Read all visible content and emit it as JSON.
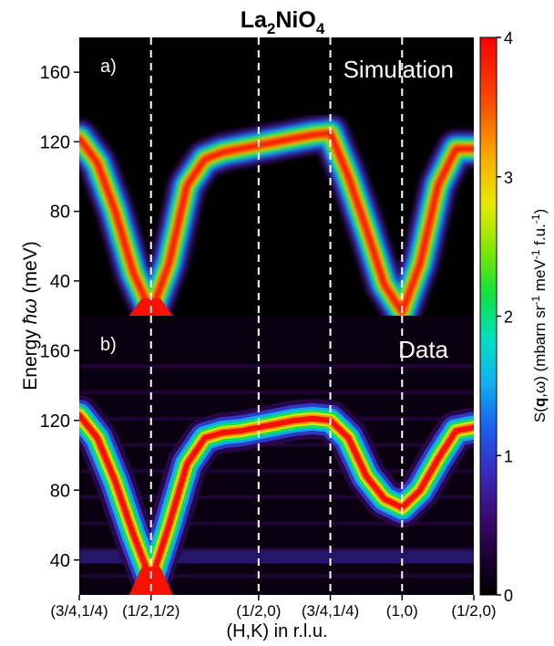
{
  "chart_data": [
    {
      "type": "heatmap",
      "title": "La2NiO4",
      "panel_label": "a)",
      "panel_text": "Simulation",
      "ylabel": "Energy ħω (meV)",
      "ylim": [
        20,
        180
      ],
      "yticks": [
        40,
        80,
        120,
        160
      ],
      "x_tick_labels": [
        "(3/4,1/4)",
        "(1/2,1/2)",
        "(1/2,0)",
        "(3/4,1/4)",
        "(1,0)",
        "(1/2,0)"
      ],
      "x_tick_positions": [
        0,
        1,
        2.5,
        3.5,
        4.5,
        5.5
      ],
      "xlabel": "(H,K) in r.l.u.",
      "dispersion": {
        "x": [
          0,
          0.25,
          0.5,
          0.75,
          1.0,
          1.25,
          1.5,
          1.75,
          2.0,
          2.25,
          2.5,
          2.75,
          3.0,
          3.25,
          3.5,
          3.75,
          4.0,
          4.25,
          4.5,
          4.75,
          5.0,
          5.25,
          5.5
        ],
        "energy_meV": [
          122,
          108,
          80,
          45,
          22,
          50,
          95,
          110,
          114,
          116,
          118,
          120,
          122,
          124,
          125,
          100,
          70,
          38,
          22,
          50,
          95,
          116,
          116
        ]
      },
      "colorbar": {
        "label": "S(q,ω) (mbarn sr-1 meV-1 f.u.-1)",
        "ticks": [
          0,
          1,
          2,
          3,
          4
        ],
        "range": [
          0,
          4
        ],
        "colors": [
          "#000000",
          "#35005a",
          "#5a1aa8",
          "#2a3ad8",
          "#1a88f0",
          "#00d8e8",
          "#10d850",
          "#a8e800",
          "#f8e000",
          "#f89000",
          "#f82000",
          "#e80000"
        ]
      }
    },
    {
      "type": "heatmap",
      "panel_label": "b)",
      "panel_text": "Data",
      "ylim": [
        20,
        180
      ],
      "yticks": [
        40,
        80,
        120,
        160
      ],
      "dispersion": {
        "x": [
          0,
          0.25,
          0.5,
          0.75,
          1.0,
          1.25,
          1.5,
          1.75,
          2.0,
          2.25,
          2.5,
          2.75,
          3.0,
          3.25,
          3.5,
          3.75,
          4.0,
          4.25,
          4.5,
          4.75,
          5.0,
          5.25,
          5.5
        ],
        "energy_meV": [
          123,
          110,
          85,
          55,
          28,
          60,
          95,
          110,
          113,
          114,
          116,
          118,
          120,
          121,
          120,
          110,
          88,
          75,
          70,
          80,
          98,
          114,
          116
        ]
      },
      "noise_band_meV": 42
    }
  ],
  "labels": {
    "title_main": "La",
    "title_sub": "2",
    "title_mid": "NiO",
    "title_sub2": "4",
    "ylabel_prefix": "Energy ",
    "ylabel_hbar": "ħω",
    "ylabel_suffix": " (meV)",
    "xlabel": "(H,K) in r.l.u.",
    "cbar_S": "S(",
    "cbar_q": "q",
    "cbar_rest": ",ω) (mbarn sr",
    "cbar_m1": "-1",
    "cbar_mev": "  meV",
    "cbar_m1b": "-1",
    "cbar_fu": " f.u.",
    "cbar_m1c": "-1",
    "cbar_close": ")"
  }
}
